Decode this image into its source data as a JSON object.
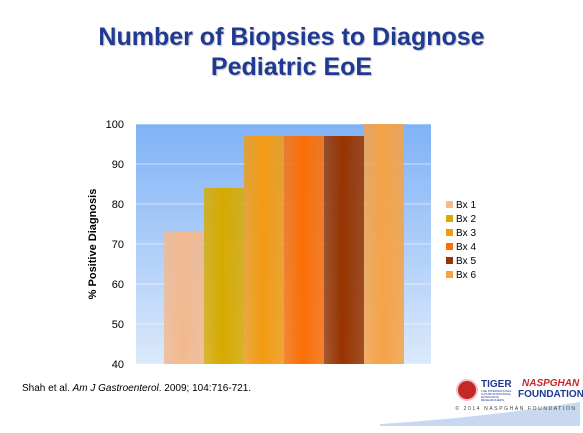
{
  "title_line1": "Number of Biopsies to Diagnose",
  "title_line2": "Pediatric EoE",
  "citation": {
    "prefix": "Shah et al. ",
    "journal": "Am J Gastroenterol",
    "suffix": ". 2009; 104:716-721."
  },
  "logos": {
    "tiger": "TIGER",
    "tiger_sub": "THE INTERNATIONAL GASTROINTESTINAL EOSINOPHIL RESEARCHERS",
    "naspghan": "NASPGHAN",
    "foundation": "FOUNDATION",
    "copyright": "© 2014 NASPGHAN FOUNDATION"
  },
  "chart_data": {
    "type": "bar",
    "categories": [
      "Bx 1",
      "Bx 2",
      "Bx 3",
      "Bx 4",
      "Bx 5",
      "Bx 6"
    ],
    "values": [
      73,
      84,
      97,
      97,
      97,
      100
    ],
    "colors": [
      "#f3b98f",
      "#d7aa00",
      "#f29b12",
      "#fb6f06",
      "#973400",
      "#f5a347"
    ],
    "title": "",
    "xlabel": "",
    "ylabel": "% Positive Diagnosis",
    "ylim": [
      40,
      100
    ],
    "yticks": [
      40,
      50,
      60,
      70,
      80,
      90,
      100
    ],
    "grid": true,
    "legend": "right",
    "background": "#7fb2f6"
  }
}
